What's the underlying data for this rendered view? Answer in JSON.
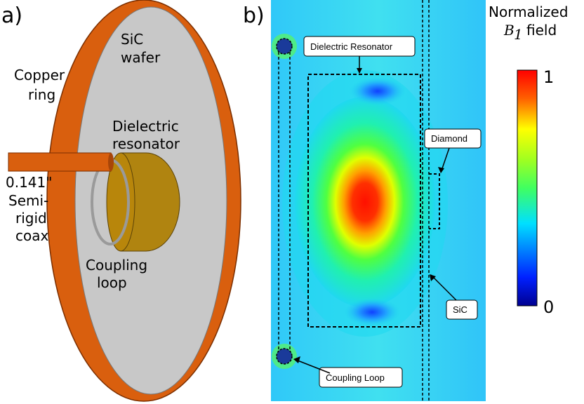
{
  "panel_a": {
    "label": "a)",
    "sic_wafer_line1": "SiC",
    "sic_wafer_line2": "wafer",
    "copper_ring_line1": "Copper",
    "copper_ring_line2": "ring",
    "dielectric_line1": "Dielectric",
    "dielectric_line2": "resonator",
    "coax_line1": "0.141\"",
    "coax_line2": "Semi-",
    "coax_line3": "rigid",
    "coax_line4": "coax",
    "coupling_line1": "Coupling",
    "coupling_line2": "loop",
    "colors": {
      "copper": "#d95f0e",
      "wafer": "#c8c8c8",
      "resonator": "#b8860b",
      "loop": "#999999"
    }
  },
  "panel_b": {
    "label": "b)",
    "callouts": {
      "dielectric_resonator": "Dielectric Resonator",
      "diamond": "Diamond",
      "sic": "SiC",
      "coupling_loop": "Coupling Loop"
    }
  },
  "colorbar": {
    "title_line1": "Normalized",
    "title_symbol": "B",
    "title_subscript": "1",
    "title_suffix": "field",
    "max_label": "1",
    "min_label": "0",
    "colormap": [
      "#00008f",
      "#0000ff",
      "#00ffff",
      "#00ff00",
      "#ffff00",
      "#ff0000",
      "#8f0000"
    ]
  }
}
